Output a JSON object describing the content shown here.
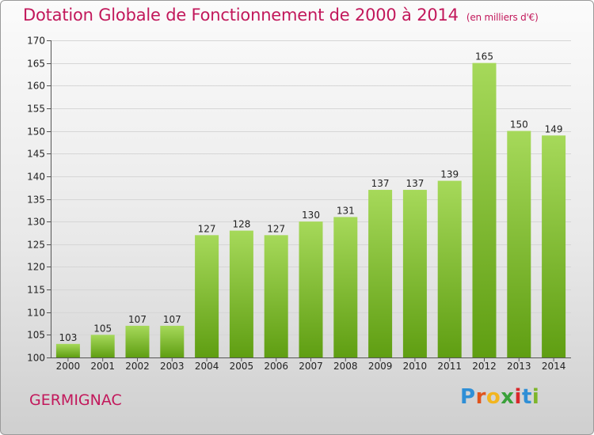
{
  "title": "Dotation Globale de Fonctionnement de 2000 à 2014",
  "unit_note": "(en milliers d'€)",
  "commune": "GERMIGNAC",
  "logo": {
    "letters": [
      "P",
      "r",
      "o",
      "x",
      "i",
      "t",
      "i"
    ],
    "colors": [
      "#2f8fd6",
      "#e0541c",
      "#f2b51f",
      "#3aa13a",
      "#d9282b",
      "#2f8fd6",
      "#7db52a"
    ]
  },
  "colors": {
    "bar_light": "#a6d95a",
    "bar_dark": "#5f9e12",
    "title": "#c2185b"
  },
  "chart_data": {
    "type": "bar",
    "categories": [
      "2000",
      "2001",
      "2002",
      "2003",
      "2004",
      "2005",
      "2006",
      "2007",
      "2008",
      "2009",
      "2010",
      "2011",
      "2012",
      "2013",
      "2014"
    ],
    "values": [
      103,
      105,
      107,
      107,
      127,
      128,
      127,
      130,
      131,
      137,
      137,
      139,
      165,
      150,
      149
    ],
    "ylim": [
      100,
      170
    ],
    "yticks": [
      100,
      105,
      110,
      115,
      120,
      125,
      130,
      135,
      140,
      145,
      150,
      155,
      160,
      165,
      170
    ],
    "grid": true,
    "xlabel": "",
    "ylabel": ""
  }
}
